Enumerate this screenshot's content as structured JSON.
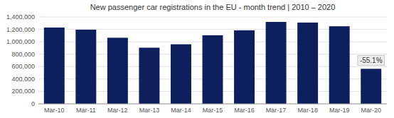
{
  "chart_data": {
    "type": "bar",
    "title": "New passenger car registrations in the EU - month trend | 2010 – 2020",
    "categories": [
      "Mar-10",
      "Mar-11",
      "Mar-12",
      "Mar-13",
      "Mar-14",
      "Mar-15",
      "Mar-16",
      "Mar-17",
      "Mar-18",
      "Mar-19",
      "Mar-20"
    ],
    "values": [
      1230000,
      1195000,
      1065000,
      905000,
      960000,
      1105000,
      1185000,
      1320000,
      1310000,
      1250000,
      565000
    ],
    "color": "#0d1f5c",
    "ylim": [
      0,
      1400000
    ],
    "yticks": [
      0,
      {
        "value": 200000,
        "label": "200,000"
      },
      {
        "value": 400000,
        "label": "400,000"
      },
      {
        "value": 600000,
        "label": "600,000"
      },
      {
        "value": 800000,
        "label": "800,000"
      },
      {
        "value": 1000000,
        "label": "1,000,000"
      },
      {
        "value": 1200000,
        "label": "1,200,000"
      },
      {
        "value": 1400000,
        "label": "1,400,000"
      }
    ],
    "grid": true,
    "annotations": [
      "-55.1%"
    ]
  }
}
